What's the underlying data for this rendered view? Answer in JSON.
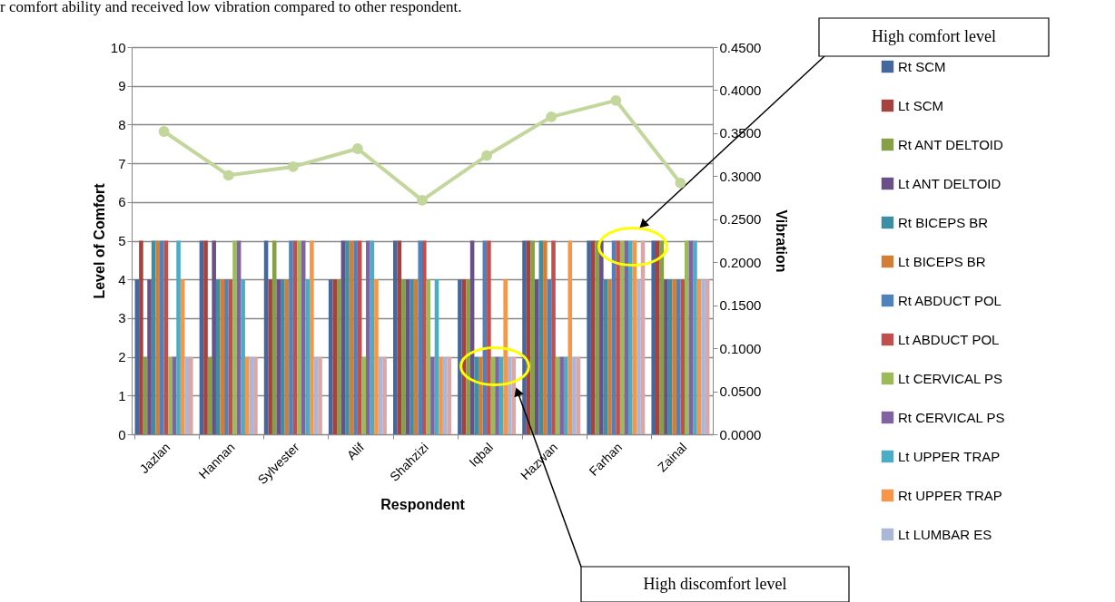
{
  "chart_data": {
    "type": "bar",
    "categories": [
      "Jazlan",
      "Hannan",
      "Sylvester",
      "Alif",
      "Shahzizi",
      "Iqbal",
      "Hazwan",
      "Farhan",
      "Zainal"
    ],
    "xlabel": "Respondent",
    "ylabel": "Level of Comfort",
    "y2label": "Vibration",
    "ylim": [
      0,
      10
    ],
    "yticks": [
      0,
      1,
      2,
      3,
      4,
      5,
      6,
      7,
      8,
      9,
      10
    ],
    "y2lim": [
      0,
      0.45
    ],
    "y2ticks": [
      {
        "value": 0,
        "label": "0.0000"
      },
      {
        "value": 0.05,
        "label": "0.0500"
      },
      {
        "value": 0.1,
        "label": "0.1000"
      },
      {
        "value": 0.15,
        "label": "0.1500"
      },
      {
        "value": 0.2,
        "label": "0.2000"
      },
      {
        "value": 0.25,
        "label": "0.2500"
      },
      {
        "value": 0.3,
        "label": "0.3000"
      },
      {
        "value": 0.35,
        "label": "0.3500"
      },
      {
        "value": 0.4,
        "label": "0.4000"
      },
      {
        "value": 0.45,
        "label": "0.4500"
      }
    ],
    "grid": "y",
    "legend": "right",
    "marker": "circle",
    "series": [
      {
        "name": "Rt SCM",
        "color": "#44679e",
        "values": [
          4,
          5,
          5,
          4,
          5,
          4,
          5,
          5,
          5
        ]
      },
      {
        "name": "Lt SCM",
        "color": "#a5413f",
        "values": [
          5,
          5,
          4,
          4,
          5,
          4,
          5,
          5,
          5
        ]
      },
      {
        "name": "Rt ANT DELTOID",
        "color": "#86a045",
        "values": [
          2,
          2,
          5,
          4,
          4,
          4,
          5,
          5,
          5
        ]
      },
      {
        "name": "Lt ANT DELTOID",
        "color": "#6a5088",
        "values": [
          4,
          5,
          4,
          5,
          4,
          5,
          4,
          5,
          4
        ]
      },
      {
        "name": "Rt BICEPS BR",
        "color": "#3c8ea5",
        "values": [
          5,
          4,
          4,
          5,
          4,
          2,
          5,
          4,
          4
        ]
      },
      {
        "name": "Lt BICEPS BR",
        "color": "#d27f35",
        "values": [
          5,
          4,
          4,
          5,
          4,
          2,
          5,
          4,
          4
        ]
      },
      {
        "name": "Rt ABDUCT POL",
        "color": "#4f81bd",
        "values": [
          5,
          4,
          5,
          5,
          5,
          5,
          4,
          5,
          4
        ]
      },
      {
        "name": "Lt ABDUCT POL",
        "color": "#c0504d",
        "values": [
          5,
          4,
          5,
          5,
          5,
          5,
          5,
          5,
          4
        ]
      },
      {
        "name": "Lt CERVICAL PS",
        "color": "#9bbb59",
        "values": [
          2,
          5,
          5,
          2,
          4,
          2,
          2,
          5,
          5
        ]
      },
      {
        "name": "Rt CERVICAL PS",
        "color": "#8064a2",
        "values": [
          2,
          5,
          5,
          5,
          2,
          2,
          2,
          5,
          5
        ]
      },
      {
        "name": "Lt UPPER TRAP",
        "color": "#4bacc6",
        "values": [
          5,
          4,
          4,
          5,
          4,
          2,
          2,
          5,
          5
        ]
      },
      {
        "name": "Rt UPPER TRAP",
        "color": "#f79646",
        "values": [
          4,
          2,
          5,
          4,
          2,
          4,
          5,
          5,
          4
        ]
      },
      {
        "name": "Lt LUMBAR ES",
        "color": "#a9b8d8",
        "values": [
          2,
          2,
          2,
          2,
          2,
          2,
          2,
          4,
          4
        ]
      },
      {
        "color": "#d9a7a7",
        "values": [
          2,
          2,
          2,
          2,
          2,
          2,
          2,
          5,
          4
        ]
      },
      {
        "type": "line",
        "axis": "y2",
        "color": "#c3d69b",
        "values": [
          0.352,
          0.301,
          0.311,
          0.332,
          0.272,
          0.324,
          0.369,
          0.388,
          0.292
        ]
      }
    ],
    "annotations": [
      "r comfort ability and received low vibration compared to other respondent.",
      "High comfort level",
      "High discomfort level"
    ]
  }
}
